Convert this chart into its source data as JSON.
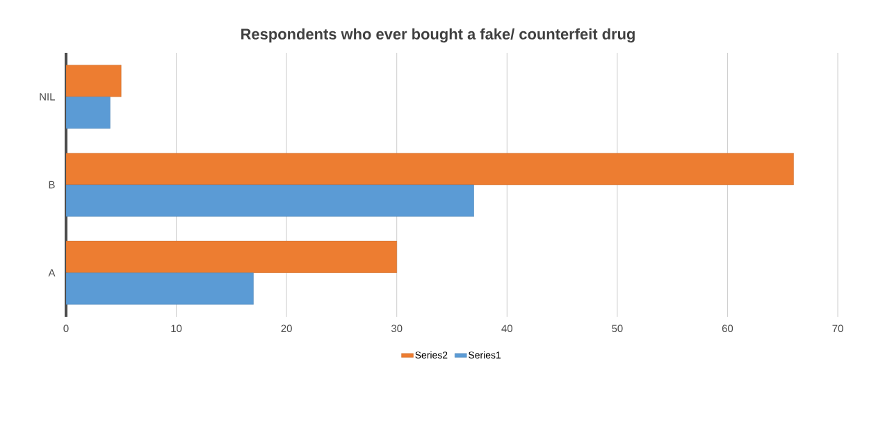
{
  "chart_data": {
    "type": "bar",
    "orientation": "horizontal",
    "title": "Respondents who ever bought a fake/ counterfeit drug",
    "categories": [
      "NIL",
      "B",
      "A"
    ],
    "series": [
      {
        "name": "Series2",
        "color": "#ed7d31",
        "values": [
          5,
          66,
          30
        ]
      },
      {
        "name": "Series1",
        "color": "#5b9bd5",
        "values": [
          4,
          37,
          17
        ]
      }
    ],
    "xlim": [
      0,
      70
    ],
    "xticks": [
      0,
      10,
      20,
      30,
      40,
      50,
      60,
      70
    ],
    "grid": "x",
    "legend": "bottom"
  }
}
